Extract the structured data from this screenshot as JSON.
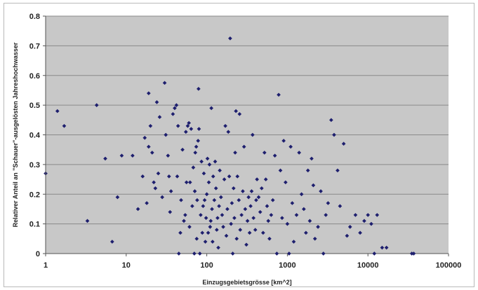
{
  "chart_data": {
    "type": "scatter",
    "xscale": "log",
    "xlim": [
      1,
      100000
    ],
    "ylim": [
      0,
      0.8
    ],
    "xticks": [
      1,
      10,
      100,
      1000,
      10000,
      100000
    ],
    "xtick_labels": [
      "1",
      "10",
      "100",
      "1000",
      "10000",
      "100000"
    ],
    "yticks": [
      0,
      0.1,
      0.2,
      0.3,
      0.4,
      0.5,
      0.6,
      0.7,
      0.8
    ],
    "ytick_labels": [
      "0",
      "0.1",
      "0.2",
      "0.3",
      "0.4",
      "0.5",
      "0.6",
      "0.7",
      "0.8"
    ],
    "xlabel": "Einzugsgebietsgrösse [km^2]",
    "ylabel": "Relativer Anteil an \"Schauer\"-ausgelösten Jahreshochwasser",
    "grid": "horizontal",
    "plot_background": "#c8c8c8",
    "marker_color": "#1e1f6e",
    "points": [
      [
        1,
        0.27
      ],
      [
        1.4,
        0.48
      ],
      [
        1.7,
        0.43
      ],
      [
        3.3,
        0.11
      ],
      [
        4.3,
        0.5
      ],
      [
        5.5,
        0.32
      ],
      [
        6.7,
        0.04
      ],
      [
        7.8,
        0.19
      ],
      [
        8.8,
        0.33
      ],
      [
        12,
        0.33
      ],
      [
        14,
        0.15
      ],
      [
        16,
        0.26
      ],
      [
        17,
        0.39
      ],
      [
        18,
        0.17
      ],
      [
        19,
        0.54
      ],
      [
        19,
        0.36
      ],
      [
        20,
        0.43
      ],
      [
        21,
        0.34
      ],
      [
        22,
        0.24
      ],
      [
        23,
        0.22
      ],
      [
        24,
        0.51
      ],
      [
        25,
        0.27
      ],
      [
        26,
        0.46
      ],
      [
        28,
        0.19
      ],
      [
        30,
        0.575
      ],
      [
        31,
        0.4
      ],
      [
        33,
        0.33
      ],
      [
        34,
        0.26
      ],
      [
        35,
        0.14
      ],
      [
        36,
        0.21
      ],
      [
        38,
        0.47
      ],
      [
        40,
        0.49
      ],
      [
        42,
        0.5
      ],
      [
        43,
        0.26
      ],
      [
        44,
        0.43
      ],
      [
        45,
        0.0
      ],
      [
        47,
        0.07
      ],
      [
        48,
        0.18
      ],
      [
        50,
        0.35
      ],
      [
        52,
        0.11
      ],
      [
        54,
        0.13
      ],
      [
        55,
        0.41
      ],
      [
        56,
        0.24
      ],
      [
        58,
        0.43
      ],
      [
        60,
        0.44
      ],
      [
        61,
        0.09
      ],
      [
        62,
        0.24
      ],
      [
        64,
        0.42
      ],
      [
        66,
        0.16
      ],
      [
        68,
        0.29
      ],
      [
        70,
        0.0
      ],
      [
        71,
        0.21
      ],
      [
        72,
        0.34
      ],
      [
        74,
        0.36
      ],
      [
        75,
        0.05
      ],
      [
        76,
        0.18
      ],
      [
        78,
        0.38
      ],
      [
        79,
        0.555
      ],
      [
        80,
        0.42
      ],
      [
        82,
        0.0
      ],
      [
        84,
        0.13
      ],
      [
        86,
        0.31
      ],
      [
        88,
        0.07
      ],
      [
        90,
        0.16
      ],
      [
        92,
        0.27
      ],
      [
        94,
        0.18
      ],
      [
        96,
        0.04
      ],
      [
        98,
        0.12
      ],
      [
        100,
        0.2
      ],
      [
        102,
        0.32
      ],
      [
        104,
        0.07
      ],
      [
        106,
        0.24
      ],
      [
        108,
        0.3
      ],
      [
        110,
        0.09
      ],
      [
        112,
        0.11
      ],
      [
        114,
        0.49
      ],
      [
        116,
        0.15
      ],
      [
        118,
        0.04
      ],
      [
        120,
        0.26
      ],
      [
        124,
        0.18
      ],
      [
        127,
        0.31
      ],
      [
        130,
        0.22
      ],
      [
        133,
        0.08
      ],
      [
        136,
        0.12
      ],
      [
        139,
        0.02
      ],
      [
        142,
        0.16
      ],
      [
        145,
        0.28
      ],
      [
        150,
        0.19
      ],
      [
        155,
        0.13
      ],
      [
        160,
        0.09
      ],
      [
        165,
        0.25
      ],
      [
        170,
        0.43
      ],
      [
        175,
        0.06
      ],
      [
        180,
        0.15
      ],
      [
        185,
        0.41
      ],
      [
        190,
        0.26
      ],
      [
        195,
        0.725
      ],
      [
        200,
        0.1
      ],
      [
        205,
        0.17
      ],
      [
        210,
        0.0
      ],
      [
        215,
        0.22
      ],
      [
        220,
        0.12
      ],
      [
        225,
        0.34
      ],
      [
        230,
        0.48
      ],
      [
        235,
        0.05
      ],
      [
        240,
        0.26
      ],
      [
        250,
        0.18
      ],
      [
        255,
        0.47
      ],
      [
        260,
        0.08
      ],
      [
        270,
        0.13
      ],
      [
        280,
        0.21
      ],
      [
        290,
        0.36
      ],
      [
        300,
        0.15
      ],
      [
        310,
        0.03
      ],
      [
        320,
        0.11
      ],
      [
        330,
        0.19
      ],
      [
        340,
        0.07
      ],
      [
        350,
        0.16
      ],
      [
        360,
        0.21
      ],
      [
        370,
        0.4
      ],
      [
        380,
        0.12
      ],
      [
        400,
        0.08
      ],
      [
        410,
        0.18
      ],
      [
        420,
        0.25
      ],
      [
        440,
        0.19
      ],
      [
        460,
        0.14
      ],
      [
        480,
        0.22
      ],
      [
        500,
        0.07
      ],
      [
        520,
        0.34
      ],
      [
        540,
        0.25
      ],
      [
        560,
        0.16
      ],
      [
        580,
        0.11
      ],
      [
        600,
        0.05
      ],
      [
        630,
        0.13
      ],
      [
        660,
        0.18
      ],
      [
        700,
        0.33
      ],
      [
        740,
        0.0
      ],
      [
        780,
        0.535
      ],
      [
        820,
        0.28
      ],
      [
        860,
        0.12
      ],
      [
        900,
        0.38
      ],
      [
        950,
        0.24
      ],
      [
        1000,
        0.1
      ],
      [
        1050,
        0.0
      ],
      [
        1100,
        0.36
      ],
      [
        1150,
        0.17
      ],
      [
        1200,
        0.04
      ],
      [
        1300,
        0.13
      ],
      [
        1400,
        0.34
      ],
      [
        1500,
        0.2
      ],
      [
        1600,
        0.15
      ],
      [
        1700,
        0.07
      ],
      [
        1800,
        0.28
      ],
      [
        1900,
        0.11
      ],
      [
        2000,
        0.32
      ],
      [
        2100,
        0.23
      ],
      [
        2200,
        0.05
      ],
      [
        2400,
        0.09
      ],
      [
        2600,
        0.21
      ],
      [
        2800,
        0.0
      ],
      [
        3000,
        0.13
      ],
      [
        3200,
        0.17
      ],
      [
        3500,
        0.45
      ],
      [
        3800,
        0.4
      ],
      [
        4200,
        0.28
      ],
      [
        4500,
        0.16
      ],
      [
        5000,
        0.37
      ],
      [
        5500,
        0.06
      ],
      [
        6000,
        0.09
      ],
      [
        7000,
        0.13
      ],
      [
        8000,
        0.07
      ],
      [
        9000,
        0.11
      ],
      [
        10000,
        0.13
      ],
      [
        11000,
        0.1
      ],
      [
        12000,
        0.0
      ],
      [
        13000,
        0.13
      ],
      [
        15000,
        0.02
      ],
      [
        17000,
        0.02
      ],
      [
        35000,
        0.0
      ],
      [
        37000,
        0.0
      ]
    ]
  }
}
